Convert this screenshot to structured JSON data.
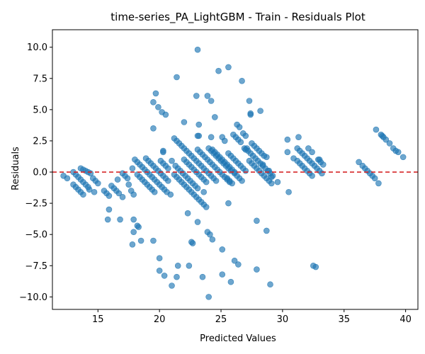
{
  "chart_data": {
    "type": "scatter",
    "title": "time-series_PA_LightGBM - Train - Residuals Plot",
    "xlabel": "Predicted Values",
    "ylabel": "Residuals",
    "xlim": [
      11.3,
      41.0
    ],
    "ylim": [
      -11.0,
      11.4
    ],
    "xticks": [
      15,
      20,
      25,
      30,
      35,
      40
    ],
    "xtick_labels": [
      "15",
      "20",
      "25",
      "30",
      "35",
      "40"
    ],
    "yticks": [
      -10.0,
      -7.5,
      -5.0,
      -2.5,
      0.0,
      2.5,
      5.0,
      7.5,
      10.0
    ],
    "ytick_labels": [
      "−10.0",
      "−7.5",
      "−5.0",
      "−2.5",
      "0.0",
      "2.5",
      "5.0",
      "7.5",
      "10.0"
    ],
    "grid": false,
    "reference_line": {
      "y": 0,
      "style": "dashed",
      "color": "#d62728"
    },
    "marker_color": "#1f77b4",
    "marker_alpha": 0.65,
    "points": [
      [
        12.2,
        -0.3
      ],
      [
        12.5,
        -0.5
      ],
      [
        13.0,
        0.0
      ],
      [
        13.2,
        -0.2
      ],
      [
        13.4,
        -0.4
      ],
      [
        13.6,
        -0.6
      ],
      [
        13.8,
        -0.8
      ],
      [
        14.0,
        -1.0
      ],
      [
        14.2,
        -1.2
      ],
      [
        14.3,
        -1.4
      ],
      [
        13.0,
        -1.0
      ],
      [
        13.2,
        -1.2
      ],
      [
        13.4,
        -1.4
      ],
      [
        13.6,
        -1.6
      ],
      [
        13.8,
        -1.8
      ],
      [
        13.6,
        0.3
      ],
      [
        13.8,
        0.2
      ],
      [
        14.0,
        0.1
      ],
      [
        14.2,
        0.0
      ],
      [
        14.4,
        -0.1
      ],
      [
        14.6,
        -0.5
      ],
      [
        14.8,
        -0.7
      ],
      [
        15.0,
        -0.9
      ],
      [
        14.7,
        -1.6
      ],
      [
        15.5,
        -1.5
      ],
      [
        15.7,
        -1.7
      ],
      [
        15.9,
        -1.9
      ],
      [
        16.1,
        -1.1
      ],
      [
        16.3,
        -1.3
      ],
      [
        16.5,
        -1.5
      ],
      [
        16.7,
        -1.7
      ],
      [
        17.0,
        -2.0
      ],
      [
        16.6,
        -0.6
      ],
      [
        17.0,
        -0.1
      ],
      [
        17.2,
        -0.3
      ],
      [
        17.4,
        -0.5
      ],
      [
        17.5,
        -1.0
      ],
      [
        17.7,
        -1.5
      ],
      [
        17.9,
        -1.8
      ],
      [
        17.8,
        0.3
      ],
      [
        18.0,
        1.0
      ],
      [
        18.2,
        0.8
      ],
      [
        18.4,
        0.6
      ],
      [
        18.6,
        0.4
      ],
      [
        18.8,
        0.2
      ],
      [
        19.0,
        0.0
      ],
      [
        19.2,
        -0.2
      ],
      [
        19.4,
        -0.4
      ],
      [
        19.6,
        -0.6
      ],
      [
        19.8,
        -0.8
      ],
      [
        20.0,
        -1.0
      ],
      [
        20.2,
        -1.2
      ],
      [
        20.4,
        -1.4
      ],
      [
        20.6,
        -1.6
      ],
      [
        20.9,
        -1.8
      ],
      [
        18.2,
        -0.2
      ],
      [
        18.4,
        -0.4
      ],
      [
        18.6,
        -0.6
      ],
      [
        18.8,
        -0.8
      ],
      [
        19.0,
        -1.0
      ],
      [
        19.2,
        -1.2
      ],
      [
        19.4,
        -1.4
      ],
      [
        19.6,
        -1.6
      ],
      [
        18.9,
        1.1
      ],
      [
        19.1,
        0.9
      ],
      [
        19.3,
        0.7
      ],
      [
        19.5,
        0.5
      ],
      [
        19.7,
        0.3
      ],
      [
        19.9,
        0.1
      ],
      [
        20.1,
        -0.1
      ],
      [
        20.3,
        -0.3
      ],
      [
        20.5,
        -0.5
      ],
      [
        20.7,
        -0.7
      ],
      [
        20.1,
        0.9
      ],
      [
        20.3,
        0.7
      ],
      [
        20.5,
        0.5
      ],
      [
        20.7,
        0.3
      ],
      [
        19.5,
        3.5
      ],
      [
        19.5,
        5.6
      ],
      [
        19.7,
        6.3
      ],
      [
        19.9,
        5.2
      ],
      [
        20.2,
        4.8
      ],
      [
        20.5,
        4.6
      ],
      [
        20.3,
        1.6
      ],
      [
        20.3,
        1.7
      ],
      [
        21.0,
        0.9
      ],
      [
        21.2,
        2.7
      ],
      [
        21.4,
        2.5
      ],
      [
        21.6,
        2.3
      ],
      [
        21.8,
        2.1
      ],
      [
        22.0,
        1.9
      ],
      [
        22.2,
        1.7
      ],
      [
        22.4,
        1.5
      ],
      [
        22.6,
        1.3
      ],
      [
        22.8,
        1.1
      ],
      [
        23.0,
        0.9
      ],
      [
        23.2,
        0.7
      ],
      [
        23.4,
        0.5
      ],
      [
        23.6,
        0.3
      ],
      [
        23.8,
        0.1
      ],
      [
        24.0,
        -0.1
      ],
      [
        24.2,
        -0.3
      ],
      [
        24.4,
        -0.5
      ],
      [
        24.6,
        -0.7
      ],
      [
        21.3,
        0.5
      ],
      [
        21.5,
        0.3
      ],
      [
        21.7,
        0.1
      ],
      [
        21.9,
        -0.1
      ],
      [
        22.1,
        -0.3
      ],
      [
        22.3,
        -0.5
      ],
      [
        22.5,
        -0.7
      ],
      [
        22.7,
        -0.9
      ],
      [
        22.9,
        -1.1
      ],
      [
        23.1,
        -1.3
      ],
      [
        21.2,
        -0.2
      ],
      [
        21.4,
        -0.4
      ],
      [
        21.6,
        -0.6
      ],
      [
        21.8,
        -0.8
      ],
      [
        22.0,
        -1.0
      ],
      [
        22.2,
        -1.2
      ],
      [
        22.4,
        -1.4
      ],
      [
        22.6,
        -1.6
      ],
      [
        22.8,
        -1.8
      ],
      [
        23.0,
        -2.0
      ],
      [
        23.2,
        -2.2
      ],
      [
        23.4,
        -2.4
      ],
      [
        23.6,
        -2.6
      ],
      [
        23.8,
        -2.8
      ],
      [
        22.0,
        1.0
      ],
      [
        22.2,
        0.8
      ],
      [
        22.4,
        0.6
      ],
      [
        22.6,
        0.4
      ],
      [
        22.8,
        0.2
      ],
      [
        23.0,
        0.0
      ],
      [
        23.2,
        -0.2
      ],
      [
        23.4,
        -0.4
      ],
      [
        23.6,
        -0.6
      ],
      [
        23.8,
        -0.8
      ],
      [
        23.1,
        1.8
      ],
      [
        23.3,
        1.6
      ],
      [
        23.5,
        1.4
      ],
      [
        23.7,
        1.2
      ],
      [
        23.9,
        1.0
      ],
      [
        24.1,
        0.8
      ],
      [
        24.3,
        0.6
      ],
      [
        24.5,
        0.4
      ],
      [
        24.7,
        0.2
      ],
      [
        24.9,
        0.0
      ],
      [
        25.1,
        -0.2
      ],
      [
        25.3,
        -0.4
      ],
      [
        25.5,
        -0.6
      ],
      [
        25.7,
        -0.8
      ],
      [
        24.0,
        1.9
      ],
      [
        24.2,
        1.7
      ],
      [
        24.4,
        1.5
      ],
      [
        24.6,
        1.3
      ],
      [
        24.8,
        1.1
      ],
      [
        25.0,
        0.9
      ],
      [
        25.2,
        0.7
      ],
      [
        25.4,
        0.5
      ],
      [
        25.6,
        0.3
      ],
      [
        25.8,
        0.1
      ],
      [
        24.3,
        1.8
      ],
      [
        24.5,
        1.6
      ],
      [
        24.7,
        1.4
      ],
      [
        24.9,
        1.2
      ],
      [
        25.1,
        1.0
      ],
      [
        25.3,
        0.8
      ],
      [
        25.5,
        0.6
      ],
      [
        25.7,
        0.4
      ],
      [
        25.9,
        0.2
      ],
      [
        26.1,
        0.0
      ],
      [
        25.6,
        1.5
      ],
      [
        25.8,
        1.3
      ],
      [
        26.0,
        1.1
      ],
      [
        26.2,
        0.9
      ],
      [
        26.4,
        0.7
      ],
      [
        26.6,
        0.5
      ],
      [
        26.8,
        0.3
      ],
      [
        27.0,
        0.1
      ],
      [
        25.5,
        -0.5
      ],
      [
        25.7,
        -0.7
      ],
      [
        25.9,
        -0.9
      ],
      [
        26.1,
        -0.1
      ],
      [
        26.3,
        -0.3
      ],
      [
        26.5,
        -0.5
      ],
      [
        26.7,
        -0.7
      ],
      [
        26.0,
        3.0
      ],
      [
        26.3,
        3.8
      ],
      [
        26.5,
        3.6
      ],
      [
        26.4,
        2.6
      ],
      [
        26.6,
        2.4
      ],
      [
        26.8,
        3.1
      ],
      [
        27.0,
        2.9
      ],
      [
        27.1,
        1.9
      ],
      [
        27.2,
        1.7
      ],
      [
        27.4,
        1.5
      ],
      [
        27.6,
        1.3
      ],
      [
        27.8,
        1.1
      ],
      [
        28.0,
        0.9
      ],
      [
        28.2,
        0.7
      ],
      [
        28.4,
        0.5
      ],
      [
        28.6,
        0.3
      ],
      [
        28.8,
        0.1
      ],
      [
        29.0,
        -0.1
      ],
      [
        29.2,
        -0.3
      ],
      [
        27.5,
        2.3
      ],
      [
        27.7,
        2.1
      ],
      [
        27.9,
        1.9
      ],
      [
        28.1,
        1.7
      ],
      [
        28.3,
        1.5
      ],
      [
        28.5,
        1.3
      ],
      [
        28.7,
        1.2
      ],
      [
        27.3,
        0.9
      ],
      [
        27.5,
        0.7
      ],
      [
        27.7,
        0.5
      ],
      [
        27.9,
        0.3
      ],
      [
        28.1,
        0.1
      ],
      [
        28.3,
        -0.1
      ],
      [
        28.5,
        -0.3
      ],
      [
        28.7,
        -0.5
      ],
      [
        28.9,
        -0.7
      ],
      [
        29.1,
        -0.9
      ],
      [
        29.6,
        -0.8
      ],
      [
        29.1,
        -0.4
      ],
      [
        25.1,
        2.8
      ],
      [
        25.3,
        2.5
      ],
      [
        26.2,
        2.8
      ],
      [
        26.9,
        1.9
      ],
      [
        27.0,
        1.8
      ],
      [
        28.4,
        0.6
      ],
      [
        28.9,
        0.1
      ],
      [
        23.9,
        6.1
      ],
      [
        24.2,
        5.7
      ],
      [
        23.0,
        6.1
      ],
      [
        24.5,
        4.4
      ],
      [
        23.2,
        3.8
      ],
      [
        24.8,
        8.1
      ],
      [
        25.6,
        8.4
      ],
      [
        26.7,
        7.3
      ],
      [
        21.4,
        7.6
      ],
      [
        27.3,
        5.7
      ],
      [
        27.4,
        4.6
      ],
      [
        27.4,
        4.7
      ],
      [
        28.2,
        4.9
      ],
      [
        22.0,
        4.0
      ],
      [
        23.2,
        2.9
      ],
      [
        23.1,
        2.9
      ],
      [
        24.2,
        2.8
      ],
      [
        23.1,
        9.8
      ],
      [
        30.4,
        2.6
      ],
      [
        30.4,
        1.6
      ],
      [
        30.5,
        -1.6
      ],
      [
        30.9,
        1.1
      ],
      [
        31.2,
        1.9
      ],
      [
        31.3,
        2.8
      ],
      [
        31.4,
        1.7
      ],
      [
        31.6,
        1.5
      ],
      [
        31.8,
        1.3
      ],
      [
        32.0,
        1.1
      ],
      [
        32.2,
        0.9
      ],
      [
        32.4,
        0.7
      ],
      [
        32.6,
        0.5
      ],
      [
        32.8,
        0.3
      ],
      [
        33.0,
        0.1
      ],
      [
        33.2,
        -0.1
      ],
      [
        31.2,
        0.9
      ],
      [
        31.4,
        0.7
      ],
      [
        31.6,
        0.5
      ],
      [
        31.8,
        0.3
      ],
      [
        32.0,
        0.1
      ],
      [
        32.2,
        -0.1
      ],
      [
        32.4,
        -0.3
      ],
      [
        32.1,
        1.9
      ],
      [
        32.4,
        1.6
      ],
      [
        32.9,
        1.0
      ],
      [
        33.0,
        1.0
      ],
      [
        33.1,
        0.8
      ],
      [
        33.3,
        0.6
      ],
      [
        36.2,
        0.8
      ],
      [
        36.5,
        0.5
      ],
      [
        36.7,
        0.3
      ],
      [
        36.9,
        0.1
      ],
      [
        37.1,
        -0.1
      ],
      [
        37.3,
        -0.3
      ],
      [
        37.5,
        -0.5
      ],
      [
        37.8,
        -0.9
      ],
      [
        37.6,
        3.4
      ],
      [
        38.0,
        3.0
      ],
      [
        38.2,
        2.8
      ],
      [
        38.4,
        2.6
      ],
      [
        38.7,
        2.3
      ],
      [
        39.0,
        1.9
      ],
      [
        39.2,
        1.7
      ],
      [
        39.4,
        1.6
      ],
      [
        39.8,
        1.2
      ],
      [
        38.1,
        2.9
      ],
      [
        15.8,
        -3.8
      ],
      [
        15.9,
        -3.0
      ],
      [
        16.8,
        -3.8
      ],
      [
        17.9,
        -3.8
      ],
      [
        17.9,
        -4.8
      ],
      [
        18.2,
        -4.3
      ],
      [
        18.3,
        -4.4
      ],
      [
        17.8,
        -5.8
      ],
      [
        18.5,
        -5.5
      ],
      [
        19.5,
        -5.5
      ],
      [
        20.0,
        -6.9
      ],
      [
        20.0,
        -7.9
      ],
      [
        20.4,
        -8.3
      ],
      [
        21.0,
        -9.1
      ],
      [
        21.4,
        -8.4
      ],
      [
        21.5,
        -7.5
      ],
      [
        22.4,
        -7.5
      ],
      [
        22.3,
        -3.3
      ],
      [
        22.6,
        -5.6
      ],
      [
        22.7,
        -5.7
      ],
      [
        23.1,
        -4.0
      ],
      [
        23.5,
        -8.4
      ],
      [
        23.6,
        -1.6
      ],
      [
        23.9,
        -4.8
      ],
      [
        24.1,
        -5.0
      ],
      [
        24.3,
        -5.4
      ],
      [
        24.0,
        -10.0
      ],
      [
        25.1,
        -6.2
      ],
      [
        25.1,
        -8.2
      ],
      [
        25.8,
        -8.8
      ],
      [
        26.1,
        -7.1
      ],
      [
        26.4,
        -7.4
      ],
      [
        25.6,
        -2.5
      ],
      [
        27.9,
        -3.9
      ],
      [
        27.9,
        -7.8
      ],
      [
        28.7,
        -4.7
      ],
      [
        29.0,
        -9.0
      ],
      [
        32.5,
        -7.5
      ],
      [
        32.7,
        -7.6
      ]
    ]
  }
}
